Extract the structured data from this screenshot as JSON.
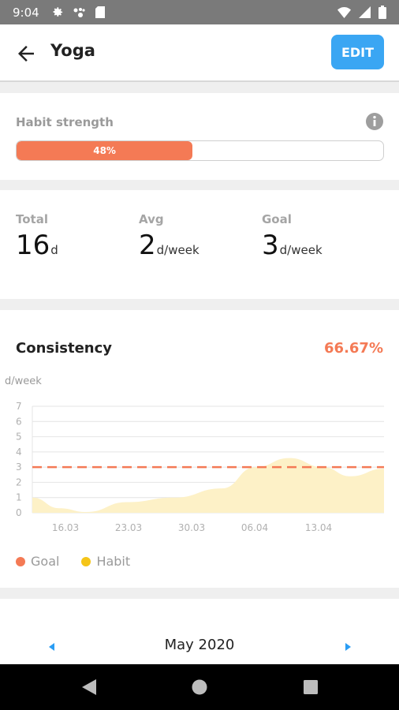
{
  "status_bar": {
    "time": "9:04",
    "left_icons": [
      "gear-icon",
      "assistant-icon",
      "sim-card-icon"
    ],
    "right_icons": [
      "wifi-icon",
      "signal-icon",
      "battery-icon"
    ]
  },
  "app_bar": {
    "title": "Yoga",
    "edit_label": "EDIT"
  },
  "habit_strength": {
    "label": "Habit strength",
    "percent_text": "48%",
    "value": 0.48,
    "fill_color": "#f47a55"
  },
  "stats": {
    "total": {
      "label": "Total",
      "value": "16",
      "unit": "d"
    },
    "avg": {
      "label": "Avg",
      "value": "2",
      "unit": "d/week"
    },
    "goal": {
      "label": "Goal",
      "value": "3",
      "unit": "d/week"
    }
  },
  "consistency": {
    "title": "Consistency",
    "percent": "66.67%",
    "legend": {
      "goal": "Goal",
      "habit": "Habit"
    },
    "colors": {
      "goal": "#f47a55",
      "habit": "#f5c518",
      "area": "#fdf1c7"
    }
  },
  "chart_data": {
    "type": "area",
    "ylabel": "d/week",
    "ylim": [
      0,
      7
    ],
    "yticks": [
      "0",
      "1",
      "2",
      "3",
      "4",
      "5",
      "6",
      "7"
    ],
    "xticks": [
      "16.03",
      "23.03",
      "30.03",
      "06.04",
      "13.04"
    ],
    "goal_value": 3,
    "series": [
      {
        "values": [
          {
            "day": 0,
            "y": 1.0
          },
          {
            "day": 4,
            "y": 0.3
          },
          {
            "day": 8,
            "y": 0.05
          },
          {
            "day": 14,
            "y": 0.7
          },
          {
            "day": 21,
            "y": 1.0
          },
          {
            "day": 28,
            "y": 1.6
          },
          {
            "day": 33,
            "y": 3.0
          },
          {
            "day": 38,
            "y": 3.6
          },
          {
            "day": 43,
            "y": 3.0
          },
          {
            "day": 47,
            "y": 2.4
          },
          {
            "day": 52,
            "y": 2.9
          }
        ]
      }
    ]
  },
  "calendar": {
    "month": "May 2020"
  }
}
